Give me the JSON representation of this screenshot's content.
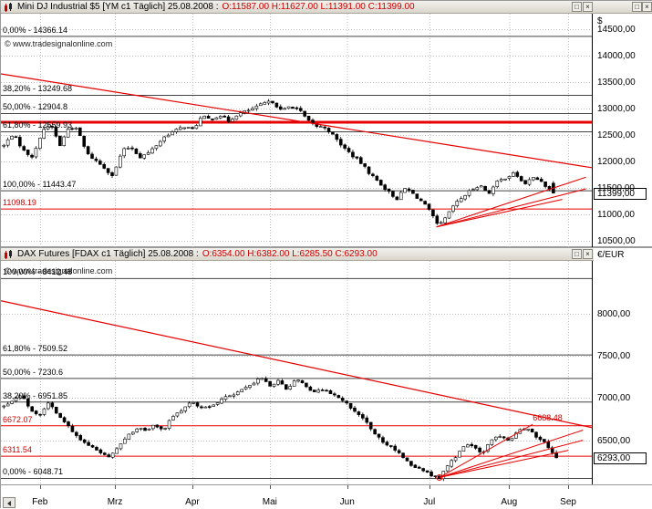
{
  "window": {
    "maximize_glyph": "□",
    "close_glyph": "×"
  },
  "watermark": "© www.tradesignalonline.com",
  "panels": [
    {
      "title": "Mini DJ Industrial $5 [YM c1  Täglich] 25.08.2008 :",
      "ohlc": "O:11587.00 H:11627.00 L:11391.00 C:11399.00",
      "currency": "$",
      "price_box": "11399,00"
    },
    {
      "title": "DAX Futures [FDAX c1  Täglich] 25.08.2008 :",
      "ohlc": "O:6354.00 H:6382.00 L:6285.50 C:6293.00",
      "currency": "€/EUR",
      "price_box": "6293,00"
    }
  ],
  "xaxis": {
    "months": [
      "Feb",
      "Mrz",
      "Apr",
      "Mai",
      "Jun",
      "Jul",
      "Aug",
      "Sep"
    ],
    "fractions": [
      0.066,
      0.193,
      0.324,
      0.455,
      0.586,
      0.725,
      0.86,
      0.96
    ]
  },
  "chart_data": [
    {
      "type": "candlestick",
      "symbol": "Mini DJ Industrial $5",
      "contract": "YM c1",
      "period": "Täglich",
      "date": "25.08.2008",
      "currency": "$",
      "ohlc": {
        "open": 11587.0,
        "high": 11627.0,
        "low": 11391.0,
        "close": 11399.0
      },
      "ylim": [
        10410,
        14760
      ],
      "y_ticks": [
        {
          "value": 14500,
          "label": "14500,00"
        },
        {
          "value": 14000,
          "label": "14000,00"
        },
        {
          "value": 13500,
          "label": "13500,00"
        },
        {
          "value": 13000,
          "label": "13000,00"
        },
        {
          "value": 12500,
          "label": "12500,00"
        },
        {
          "value": 12000,
          "label": "12000,00"
        },
        {
          "value": 11500,
          "label": "11500,00"
        },
        {
          "value": 11000,
          "label": "11000,00"
        },
        {
          "value": 10500,
          "label": "10500,00"
        }
      ],
      "x_tick_labels": [
        "Feb",
        "Mrz",
        "Apr",
        "Mai",
        "Jun",
        "Jul",
        "Aug",
        "Sep"
      ],
      "levels": [
        {
          "label": "0,00% - 14366.14",
          "value": 14366.14,
          "kind": "fib"
        },
        {
          "label": "38,20% - 13249.68",
          "value": 13249.68,
          "kind": "fib"
        },
        {
          "label": "50,00% - 12904.8",
          "value": 12904.8,
          "kind": "fib"
        },
        {
          "label": "61,80% - 12559.93",
          "value": 12559.93,
          "kind": "fib"
        },
        {
          "label": "100,00% - 11443.47",
          "value": 11443.47,
          "kind": "fib"
        },
        {
          "label": "11098.19",
          "value": 11098.19,
          "kind": "red"
        },
        {
          "label": "",
          "value": 12740,
          "kind": "red-thick"
        }
      ],
      "trendlines": [
        [
          0,
          13655,
          1,
          11880
        ]
      ],
      "fan_lines": [
        [
          0.737,
          10760,
          0.99,
          11700
        ],
        [
          0.737,
          10760,
          0.99,
          11480
        ],
        [
          0.737,
          10760,
          0.95,
          11280
        ]
      ],
      "price_path": [
        [
          0.005,
          12300
        ],
        [
          0.02,
          12520
        ],
        [
          0.04,
          12180
        ],
        [
          0.055,
          12080
        ],
        [
          0.07,
          12600
        ],
        [
          0.085,
          12680
        ],
        [
          0.1,
          12300
        ],
        [
          0.115,
          12650
        ],
        [
          0.13,
          12600
        ],
        [
          0.145,
          12150
        ],
        [
          0.16,
          12020
        ],
        [
          0.175,
          11880
        ],
        [
          0.19,
          11720
        ],
        [
          0.205,
          12200
        ],
        [
          0.22,
          12280
        ],
        [
          0.235,
          12080
        ],
        [
          0.25,
          12160
        ],
        [
          0.265,
          12330
        ],
        [
          0.28,
          12500
        ],
        [
          0.295,
          12580
        ],
        [
          0.31,
          12660
        ],
        [
          0.325,
          12600
        ],
        [
          0.34,
          12850
        ],
        [
          0.355,
          12790
        ],
        [
          0.37,
          12880
        ],
        [
          0.385,
          12760
        ],
        [
          0.4,
          12890
        ],
        [
          0.415,
          12950
        ],
        [
          0.43,
          13010
        ],
        [
          0.445,
          13100
        ],
        [
          0.46,
          13130
        ],
        [
          0.475,
          12950
        ],
        [
          0.49,
          13050
        ],
        [
          0.505,
          12970
        ],
        [
          0.52,
          12760
        ],
        [
          0.535,
          12660
        ],
        [
          0.55,
          12640
        ],
        [
          0.565,
          12450
        ],
        [
          0.58,
          12260
        ],
        [
          0.595,
          12110
        ],
        [
          0.61,
          11960
        ],
        [
          0.625,
          11760
        ],
        [
          0.64,
          11600
        ],
        [
          0.655,
          11430
        ],
        [
          0.67,
          11290
        ],
        [
          0.685,
          11500
        ],
        [
          0.7,
          11360
        ],
        [
          0.715,
          11210
        ],
        [
          0.73,
          10980
        ],
        [
          0.74,
          10760
        ],
        [
          0.755,
          10960
        ],
        [
          0.765,
          11150
        ],
        [
          0.78,
          11310
        ],
        [
          0.795,
          11450
        ],
        [
          0.81,
          11560
        ],
        [
          0.825,
          11390
        ],
        [
          0.84,
          11610
        ],
        [
          0.855,
          11700
        ],
        [
          0.87,
          11780
        ],
        [
          0.885,
          11560
        ],
        [
          0.9,
          11690
        ],
        [
          0.915,
          11630
        ],
        [
          0.925,
          11490
        ],
        [
          0.935,
          11399
        ]
      ]
    },
    {
      "type": "candlestick",
      "symbol": "DAX Futures",
      "contract": "FDAX c1",
      "period": "Täglich",
      "date": "25.08.2008",
      "currency": "€/EUR",
      "ohlc": {
        "open": 6354.0,
        "high": 6382.0,
        "low": 6285.5,
        "close": 6293.0
      },
      "ylim": [
        6000,
        8600
      ],
      "y_ticks": [
        {
          "value": 8000,
          "label": "8000,00"
        },
        {
          "value": 7500,
          "label": "7500,00"
        },
        {
          "value": 7000,
          "label": "7000,00"
        },
        {
          "value": 6500,
          "label": "6500,00"
        }
      ],
      "x_tick_labels": [
        "Feb",
        "Mrz",
        "Apr",
        "Mai",
        "Jun",
        "Jul",
        "Aug",
        "Sep"
      ],
      "levels": [
        {
          "label": "100,00% - 8412.48",
          "value": 8412.48,
          "kind": "fib"
        },
        {
          "label": "61,80% - 7509.52",
          "value": 7509.52,
          "kind": "fib"
        },
        {
          "label": "50,00% - 7230.6",
          "value": 7230.6,
          "kind": "fib"
        },
        {
          "label": "38,20% - 6951.85",
          "value": 6951.85,
          "kind": "fib"
        },
        {
          "label": "0,00% - 6048.71",
          "value": 6048.71,
          "kind": "fib"
        },
        {
          "label": "6672.07",
          "value": 6672.07,
          "kind": "red"
        },
        {
          "label": "6311.54",
          "value": 6311.54,
          "kind": "red"
        },
        {
          "label": "6688.48",
          "value": 6688.48,
          "kind": "right-label",
          "t": 0.9
        }
      ],
      "trendlines": [
        [
          0,
          8150,
          1,
          6650
        ]
      ],
      "fan_lines": [
        [
          0.742,
          6060,
          0.9,
          6688
        ],
        [
          0.742,
          6060,
          0.985,
          6620
        ],
        [
          0.742,
          6060,
          0.985,
          6500
        ],
        [
          0.742,
          6060,
          0.96,
          6380
        ]
      ],
      "fan_origin": [
        0.742,
        6060
      ],
      "price_path": [
        [
          0.005,
          6900
        ],
        [
          0.02,
          6980
        ],
        [
          0.035,
          7040
        ],
        [
          0.05,
          6860
        ],
        [
          0.065,
          6800
        ],
        [
          0.08,
          6950
        ],
        [
          0.095,
          6820
        ],
        [
          0.11,
          6700
        ],
        [
          0.125,
          6560
        ],
        [
          0.14,
          6480
        ],
        [
          0.155,
          6420
        ],
        [
          0.17,
          6350
        ],
        [
          0.185,
          6300
        ],
        [
          0.2,
          6450
        ],
        [
          0.215,
          6550
        ],
        [
          0.23,
          6650
        ],
        [
          0.245,
          6600
        ],
        [
          0.26,
          6680
        ],
        [
          0.275,
          6620
        ],
        [
          0.29,
          6780
        ],
        [
          0.305,
          6850
        ],
        [
          0.32,
          6950
        ],
        [
          0.335,
          6900
        ],
        [
          0.35,
          6880
        ],
        [
          0.365,
          6950
        ],
        [
          0.38,
          7000
        ],
        [
          0.395,
          7050
        ],
        [
          0.41,
          7100
        ],
        [
          0.425,
          7180
        ],
        [
          0.44,
          7230
        ],
        [
          0.455,
          7150
        ],
        [
          0.47,
          7210
        ],
        [
          0.485,
          7100
        ],
        [
          0.5,
          7230
        ],
        [
          0.515,
          7150
        ],
        [
          0.53,
          7060
        ],
        [
          0.545,
          7110
        ],
        [
          0.56,
          7050
        ],
        [
          0.575,
          6980
        ],
        [
          0.59,
          6900
        ],
        [
          0.605,
          6800
        ],
        [
          0.62,
          6700
        ],
        [
          0.635,
          6550
        ],
        [
          0.65,
          6460
        ],
        [
          0.665,
          6400
        ],
        [
          0.68,
          6310
        ],
        [
          0.695,
          6210
        ],
        [
          0.71,
          6150
        ],
        [
          0.725,
          6100
        ],
        [
          0.742,
          6060
        ],
        [
          0.755,
          6200
        ],
        [
          0.77,
          6310
        ],
        [
          0.785,
          6450
        ],
        [
          0.8,
          6410
        ],
        [
          0.815,
          6360
        ],
        [
          0.83,
          6500
        ],
        [
          0.845,
          6550
        ],
        [
          0.86,
          6480
        ],
        [
          0.875,
          6600
        ],
        [
          0.89,
          6660
        ],
        [
          0.905,
          6550
        ],
        [
          0.92,
          6470
        ],
        [
          0.93,
          6360
        ],
        [
          0.94,
          6293
        ]
      ]
    }
  ]
}
